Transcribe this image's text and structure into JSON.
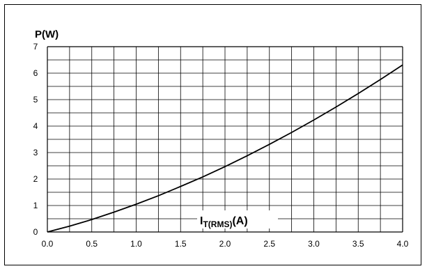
{
  "chart_data": {
    "type": "line",
    "ylabel": "P(W)",
    "xlabel": {
      "main": "I",
      "subscript": "T(RMS)",
      "suffix": "(A)"
    },
    "xlim": [
      0.0,
      4.0
    ],
    "ylim": [
      0,
      7
    ],
    "x_tick_labels": [
      "0.0",
      "0.5",
      "1.0",
      "1.5",
      "2.0",
      "2.5",
      "3.0",
      "3.5",
      "4.0"
    ],
    "y_tick_labels": [
      "0",
      "1",
      "2",
      "3",
      "4",
      "5",
      "6",
      "7"
    ],
    "grid": true,
    "minor_x_grid_step": 0.25,
    "minor_y_grid_step": 0.5,
    "series": [
      {
        "x": [
          0.0,
          0.25,
          0.5,
          0.75,
          1.0,
          1.25,
          1.5,
          1.75,
          2.0,
          2.25,
          2.5,
          2.75,
          3.0,
          3.25,
          3.5,
          3.75,
          4.0
        ],
        "y": [
          0.0,
          0.22,
          0.47,
          0.75,
          1.05,
          1.37,
          1.72,
          2.08,
          2.47,
          2.88,
          3.31,
          3.76,
          4.23,
          4.72,
          5.23,
          5.76,
          6.31
        ]
      }
    ]
  }
}
